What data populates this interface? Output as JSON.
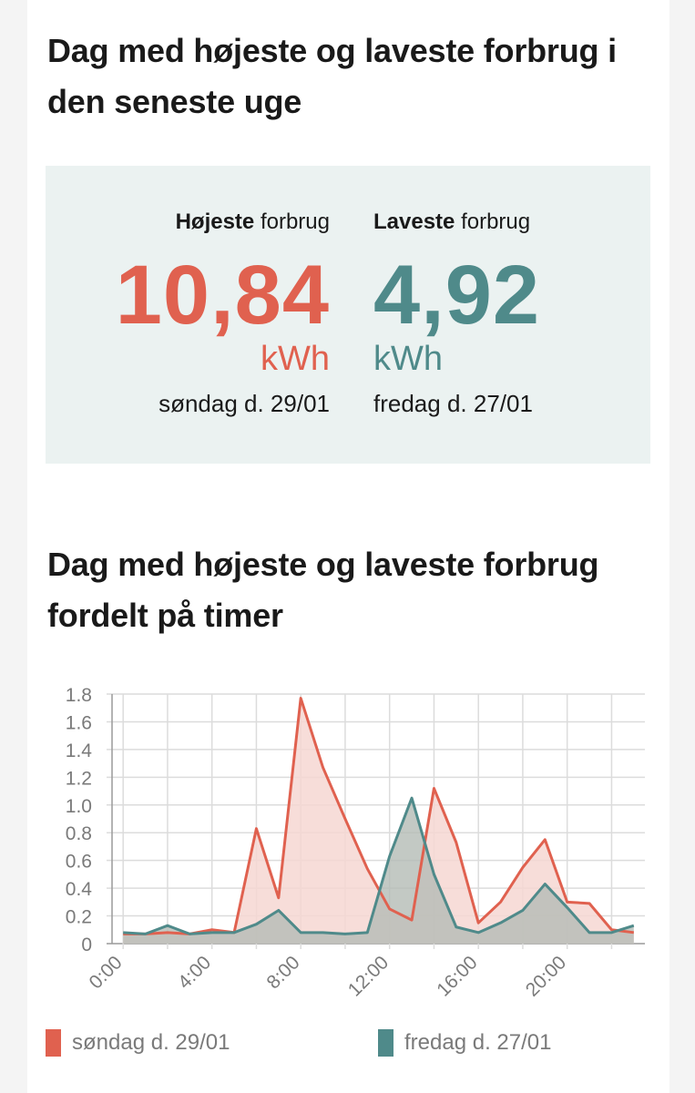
{
  "summary": {
    "title": "Dag med højeste og laveste forbrug i den seneste uge",
    "high": {
      "label_bold": "Højeste",
      "label_rest": "forbrug",
      "value": "10,84",
      "unit": "kWh",
      "date": "søndag d. 29/01",
      "color": "#e0614f"
    },
    "low": {
      "label_bold": "Laveste",
      "label_rest": "forbrug",
      "value": "4,92",
      "unit": "kWh",
      "date": "fredag d. 27/01",
      "color": "#4f8a8a"
    }
  },
  "hourly_title": "Dag med højeste og laveste forbrug fordelt på timer",
  "chart_data": {
    "type": "area",
    "x": [
      0,
      1,
      2,
      3,
      4,
      5,
      6,
      7,
      8,
      9,
      10,
      11,
      12,
      13,
      14,
      15,
      16,
      17,
      18,
      19,
      20,
      21,
      22,
      23
    ],
    "xticks": [
      0,
      4,
      8,
      12,
      16,
      20
    ],
    "xtick_labels": [
      "0:00",
      "4:00",
      "8:00",
      "12:00",
      "16:00",
      "20:00"
    ],
    "xlim": [
      -0.5,
      23.5
    ],
    "ylim": [
      0,
      1.8
    ],
    "yticks": [
      0,
      0.2,
      0.4,
      0.6,
      0.8,
      1.0,
      1.2,
      1.4,
      1.6,
      1.8
    ],
    "ytick_labels": [
      "0",
      "0.2",
      "0.4",
      "0.6",
      "0.8",
      "1.0",
      "1.2",
      "1.4",
      "1.6",
      "1.8"
    ],
    "grid": true,
    "legend_position": "bottom",
    "series": [
      {
        "name": "søndag d. 29/01",
        "color": "#e0614f",
        "fill": "#f6d7d2",
        "values": [
          0.07,
          0.07,
          0.08,
          0.07,
          0.1,
          0.08,
          0.83,
          0.33,
          1.77,
          1.27,
          0.9,
          0.54,
          0.25,
          0.17,
          1.12,
          0.73,
          0.15,
          0.3,
          0.55,
          0.75,
          0.3,
          0.29,
          0.1,
          0.08
        ]
      },
      {
        "name": "fredag d. 27/01",
        "color": "#4f8a8a",
        "fill": "#b4bbb5",
        "values": [
          0.08,
          0.07,
          0.13,
          0.07,
          0.08,
          0.08,
          0.14,
          0.24,
          0.08,
          0.08,
          0.07,
          0.08,
          0.63,
          1.05,
          0.5,
          0.12,
          0.08,
          0.15,
          0.24,
          0.43,
          0.26,
          0.08,
          0.08,
          0.13
        ]
      }
    ]
  }
}
